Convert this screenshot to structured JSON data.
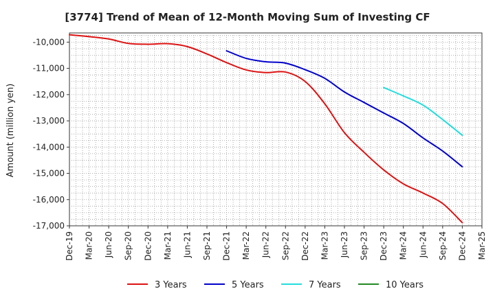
{
  "chart_data": {
    "type": "line",
    "title": "[3774]  Trend of Mean of 12-Month Moving Sum of Investing CF",
    "xlabel": "",
    "ylabel": "Amount (million yen)",
    "ylim": [
      -17000,
      -9650
    ],
    "yticks": [
      -10000,
      -11000,
      -12000,
      -13000,
      -14000,
      -15000,
      -16000,
      -17000
    ],
    "ytick_labels": [
      "-10,000",
      "-11,000",
      "-12,000",
      "-13,000",
      "-14,000",
      "-15,000",
      "-16,000",
      "-17,000"
    ],
    "xticks": [
      "Dec-19",
      "Mar-20",
      "Jun-20",
      "Sep-20",
      "Dec-20",
      "Mar-21",
      "Jun-21",
      "Sep-21",
      "Dec-21",
      "Mar-22",
      "Jun-22",
      "Sep-22",
      "Dec-22",
      "Mar-23",
      "Jun-23",
      "Sep-23",
      "Dec-23",
      "Mar-24",
      "Jun-24",
      "Sep-24",
      "Dec-24",
      "Mar-25"
    ],
    "grid": true,
    "legend_position": "bottom",
    "series": [
      {
        "name": "3 Years",
        "color": "#dd1111",
        "points": [
          [
            0,
            -9720
          ],
          [
            1,
            -9790
          ],
          [
            2,
            -9880
          ],
          [
            3,
            -10050
          ],
          [
            4,
            -10080
          ],
          [
            5,
            -10060
          ],
          [
            6,
            -10170
          ],
          [
            7,
            -10450
          ],
          [
            8,
            -10780
          ],
          [
            9,
            -11060
          ],
          [
            10,
            -11160
          ],
          [
            11,
            -11140
          ],
          [
            12,
            -11500
          ],
          [
            13,
            -12350
          ],
          [
            14,
            -13450
          ],
          [
            15,
            -14200
          ],
          [
            16,
            -14870
          ],
          [
            17,
            -15400
          ],
          [
            18,
            -15750
          ],
          [
            19,
            -16150
          ],
          [
            20,
            -16880
          ]
        ]
      },
      {
        "name": "5 Years",
        "color": "#0000cc",
        "points": [
          [
            8,
            -10330
          ],
          [
            9,
            -10620
          ],
          [
            10,
            -10750
          ],
          [
            11,
            -10800
          ],
          [
            12,
            -11050
          ],
          [
            13,
            -11380
          ],
          [
            14,
            -11900
          ],
          [
            15,
            -12300
          ],
          [
            16,
            -12700
          ],
          [
            17,
            -13100
          ],
          [
            18,
            -13650
          ],
          [
            19,
            -14150
          ],
          [
            20,
            -14750
          ]
        ]
      },
      {
        "name": "7 Years",
        "color": "#22dddd",
        "points": [
          [
            16,
            -11730
          ],
          [
            17,
            -12050
          ],
          [
            18,
            -12400
          ],
          [
            19,
            -12950
          ],
          [
            20,
            -13550
          ]
        ]
      },
      {
        "name": "10 Years",
        "color": "#228822",
        "points": []
      }
    ]
  }
}
